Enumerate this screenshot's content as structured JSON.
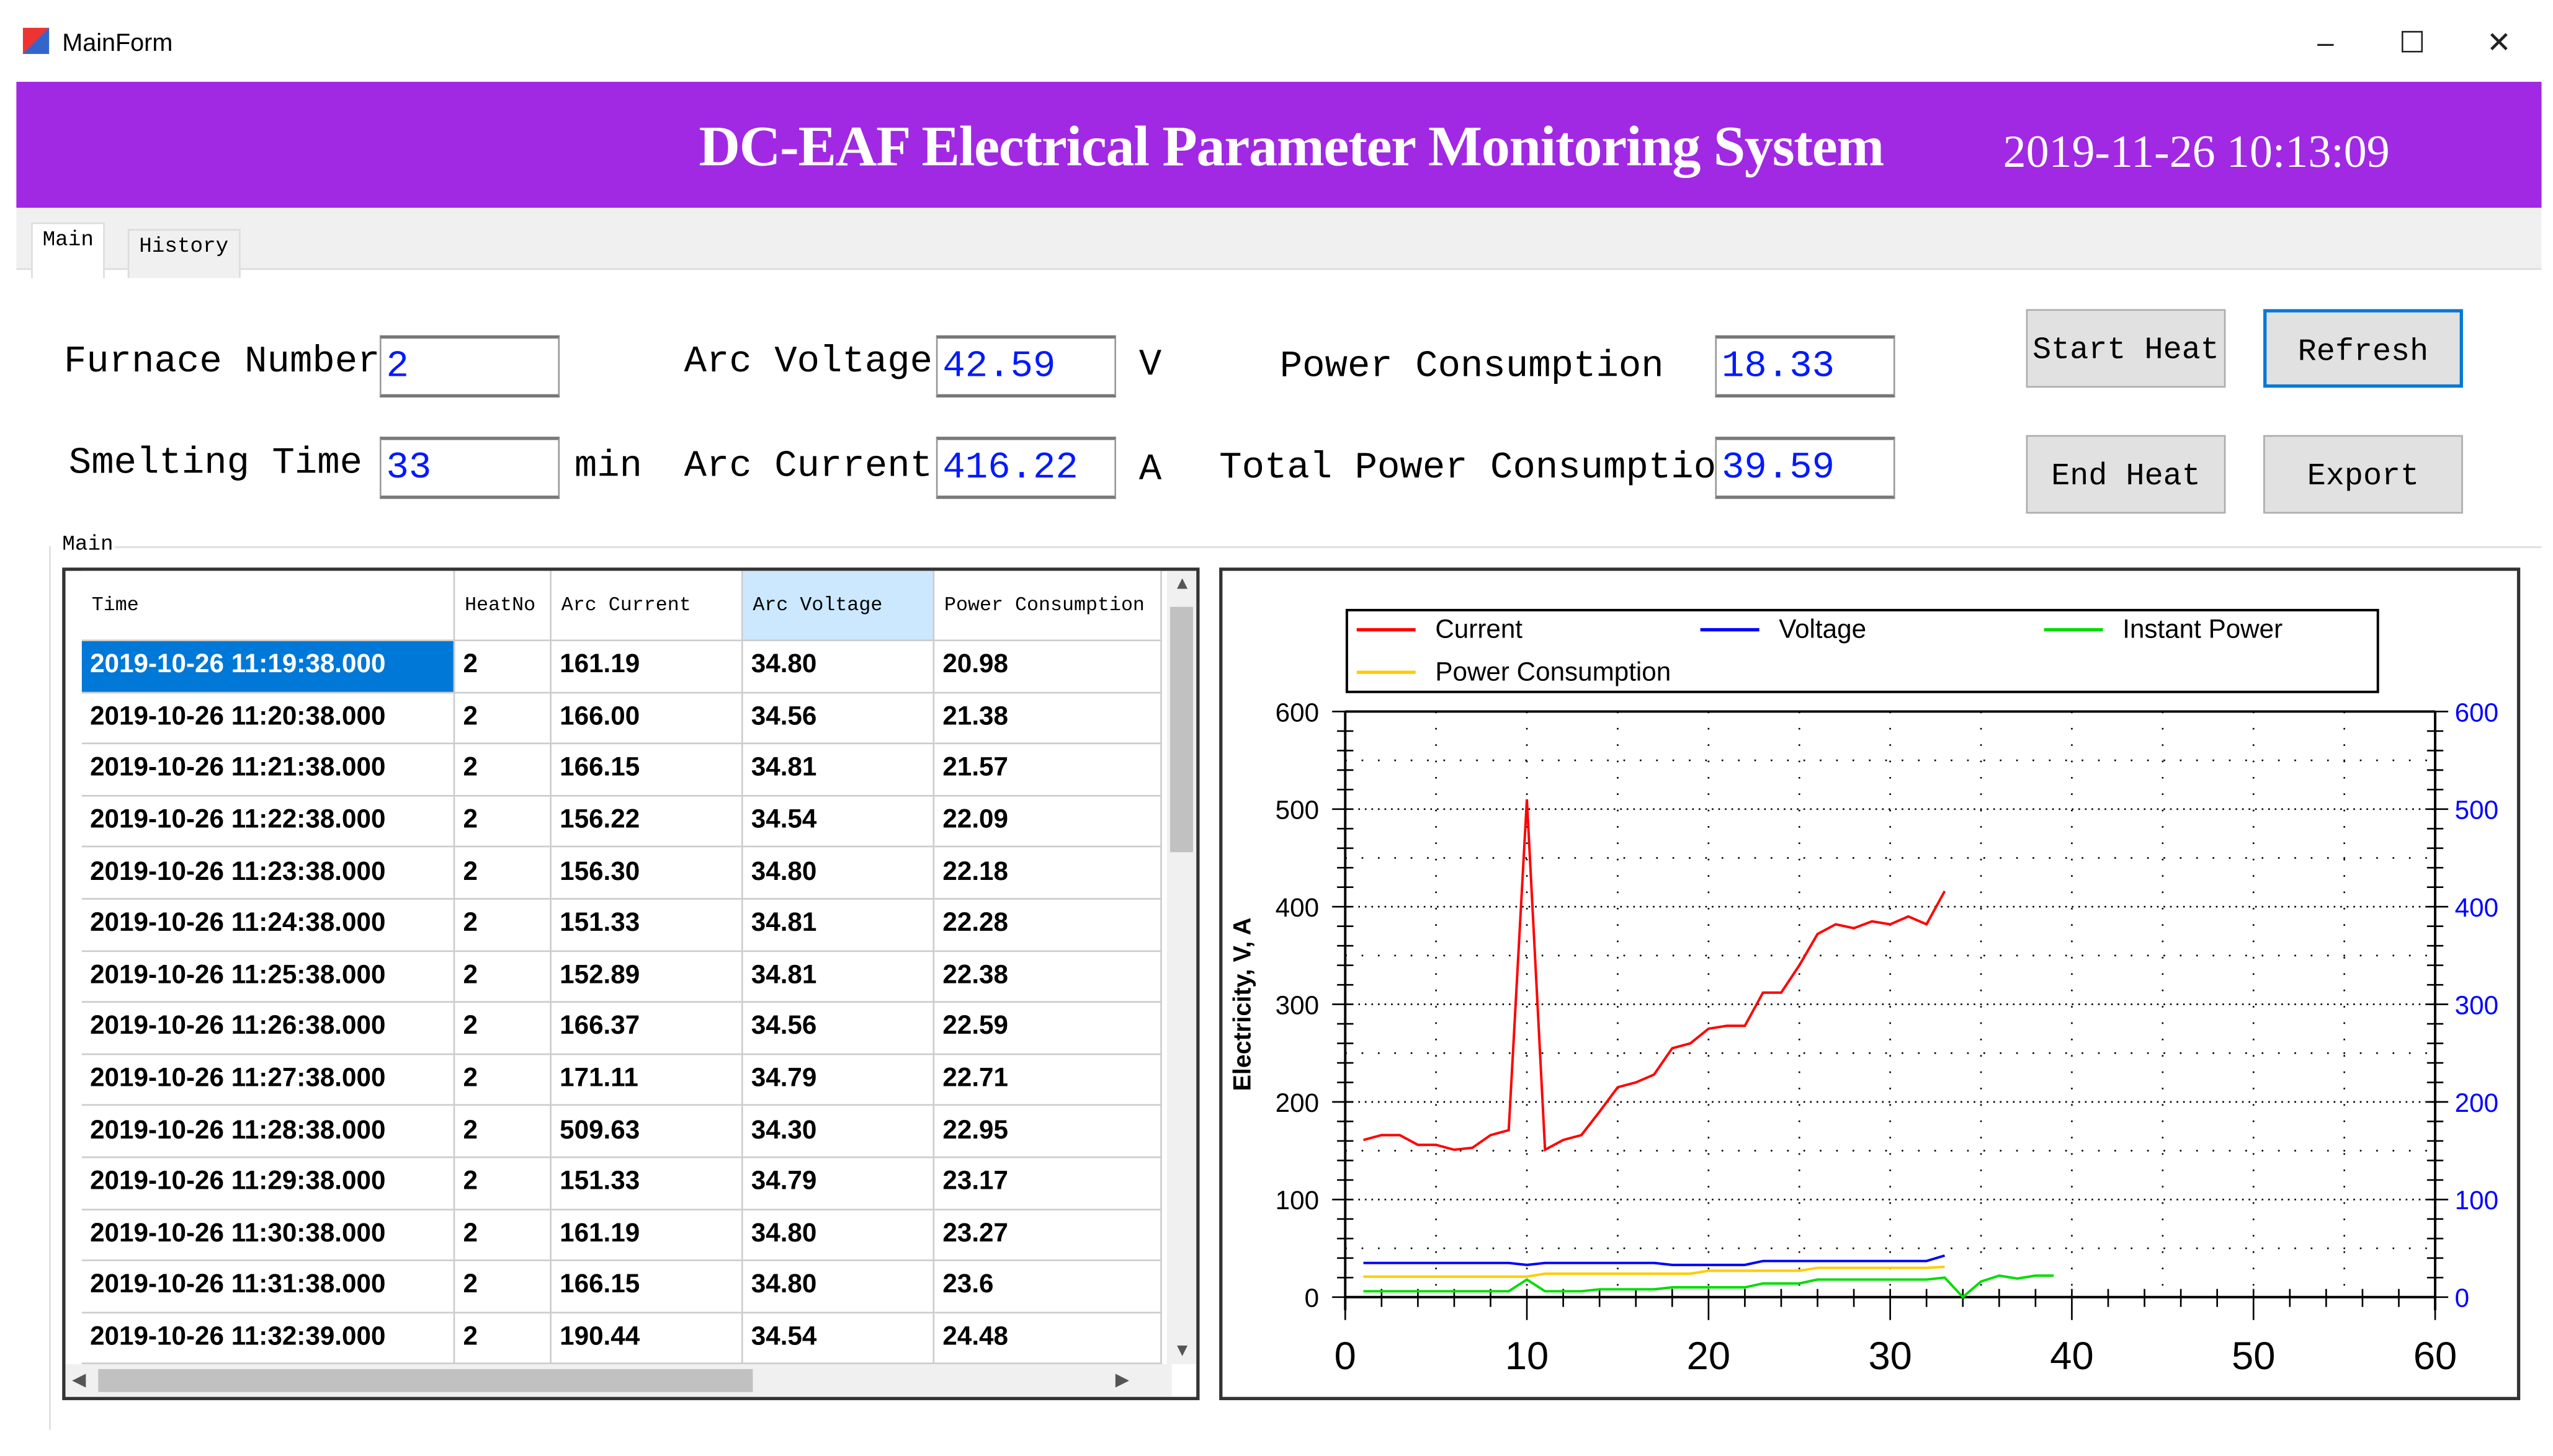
{
  "window": {
    "title": "MainForm",
    "minimize": "–",
    "maximize": "☐",
    "close": "✕"
  },
  "banner": {
    "title": "DC-EAF Electrical Parameter Monitoring System",
    "datetime": "2019-11-26  10:13:09",
    "color": "#a129e3"
  },
  "tabs": [
    {
      "label": "Main",
      "active": true
    },
    {
      "label": "History",
      "active": false
    }
  ],
  "form": {
    "furnace_number": {
      "label": "Furnace Number",
      "value": "2"
    },
    "smelting_time": {
      "label": "Smelting Time",
      "value": "33",
      "unit": "min"
    },
    "arc_voltage": {
      "label": "Arc Voltage",
      "value": "42.59",
      "unit": "V"
    },
    "arc_current": {
      "label": "Arc Current",
      "value": "416.22",
      "unit": "A"
    },
    "power_consumption": {
      "label": "Power Consumption",
      "value": "18.33"
    },
    "total_power_consumption": {
      "label": "Total Power Consumption",
      "value": "39.59"
    }
  },
  "buttons": {
    "start_heat": "Start Heat",
    "refresh": "Refresh",
    "end_heat": "End Heat",
    "export": "Export"
  },
  "group_label": "Main",
  "table": {
    "columns": [
      "Time",
      "HeatNo",
      "Arc Current",
      "Arc Voltage",
      "Power Consumption"
    ],
    "rows": [
      [
        "2019-10-26 11:19:38.000",
        "2",
        "161.19",
        "34.80",
        "20.98"
      ],
      [
        "2019-10-26 11:20:38.000",
        "2",
        "166.00",
        "34.56",
        "21.38"
      ],
      [
        "2019-10-26 11:21:38.000",
        "2",
        "166.15",
        "34.81",
        "21.57"
      ],
      [
        "2019-10-26 11:22:38.000",
        "2",
        "156.22",
        "34.54",
        "22.09"
      ],
      [
        "2019-10-26 11:23:38.000",
        "2",
        "156.30",
        "34.80",
        "22.18"
      ],
      [
        "2019-10-26 11:24:38.000",
        "2",
        "151.33",
        "34.81",
        "22.28"
      ],
      [
        "2019-10-26 11:25:38.000",
        "2",
        "152.89",
        "34.81",
        "22.38"
      ],
      [
        "2019-10-26 11:26:38.000",
        "2",
        "166.37",
        "34.56",
        "22.59"
      ],
      [
        "2019-10-26 11:27:38.000",
        "2",
        "171.11",
        "34.79",
        "22.71"
      ],
      [
        "2019-10-26 11:28:38.000",
        "2",
        "509.63",
        "34.30",
        "22.95"
      ],
      [
        "2019-10-26 11:29:38.000",
        "2",
        "151.33",
        "34.79",
        "23.17"
      ],
      [
        "2019-10-26 11:30:38.000",
        "2",
        "161.19",
        "34.80",
        "23.27"
      ],
      [
        "2019-10-26 11:31:38.000",
        "2",
        "166.15",
        "34.80",
        "23.6"
      ],
      [
        "2019-10-26 11:32:39.000",
        "2",
        "190.44",
        "34.54",
        "24.48"
      ]
    ]
  },
  "chart_data": {
    "type": "line",
    "ylabel": "Electricity, V, A",
    "xlim": [
      0,
      60
    ],
    "ylim": [
      0,
      600
    ],
    "xticks": [
      "0",
      "10",
      "20",
      "30",
      "40",
      "50",
      "60"
    ],
    "yticks": [
      "0",
      "100",
      "200",
      "300",
      "400",
      "500",
      "600"
    ],
    "grid": true,
    "legend": "top",
    "series": [
      {
        "name": "Current",
        "color": "#ff0000",
        "x": [
          1,
          2,
          3,
          4,
          5,
          6,
          7,
          8,
          9,
          10,
          11,
          12,
          13,
          14,
          15,
          16,
          17,
          18,
          19,
          20,
          21,
          22,
          23,
          24,
          25,
          26,
          27,
          28,
          29,
          30,
          31,
          32,
          33
        ],
        "y": [
          161,
          166,
          166,
          156,
          156,
          151,
          153,
          166,
          171,
          510,
          151,
          161,
          166,
          190,
          215,
          220,
          228,
          255,
          260,
          275,
          278,
          278,
          312,
          312,
          340,
          372,
          382,
          378,
          385,
          382,
          390,
          382,
          416
        ]
      },
      {
        "name": "Voltage",
        "color": "#0000ff",
        "x": [
          1,
          9,
          10,
          11,
          17,
          18,
          22,
          23,
          32,
          33
        ],
        "y": [
          35,
          35,
          33,
          35,
          35,
          33,
          33,
          37,
          37,
          42.6
        ]
      },
      {
        "name": "Instant Power",
        "color": "#00dd00",
        "x": [
          1,
          9,
          10,
          11,
          13,
          14,
          17,
          18,
          22,
          23,
          25,
          26,
          32,
          33,
          34,
          35,
          36,
          37,
          38,
          39
        ],
        "y": [
          6,
          6,
          18,
          6,
          6,
          8,
          8,
          10,
          10,
          14,
          14,
          18,
          18,
          20,
          0,
          16,
          22,
          19,
          22,
          22
        ]
      },
      {
        "name": "Power Consumption",
        "color": "#ffcc00",
        "x": [
          1,
          10,
          11,
          19,
          20,
          25,
          26,
          32,
          33
        ],
        "y": [
          21,
          21,
          24,
          24,
          27,
          27,
          30,
          30,
          31
        ]
      }
    ]
  }
}
